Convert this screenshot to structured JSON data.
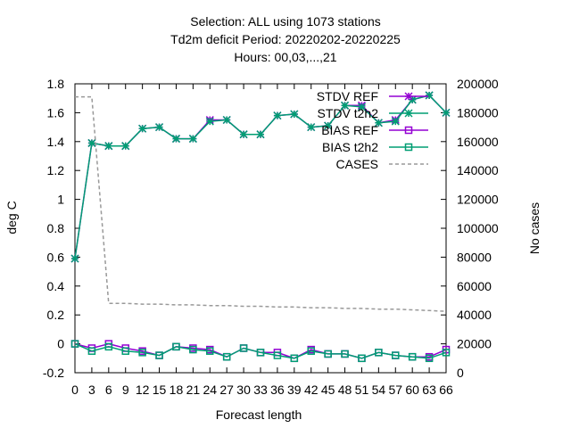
{
  "chart_data": {
    "type": "line",
    "title": [
      "Selection: ALL using  1073 stations",
      "Td2m deficit   Period: 20220202-20220225",
      "Hours:  00,03,...,21"
    ],
    "xlabel": "Forecast length",
    "ylabel": "deg C",
    "y2label": "No cases",
    "xlim": [
      0,
      66
    ],
    "ylim": [
      -0.2,
      1.8
    ],
    "y2lim": [
      0,
      200000
    ],
    "x_tick_labels": [
      "0",
      "3",
      "6",
      "9",
      "12",
      "15",
      "18",
      "21",
      "24",
      "27",
      "30",
      "33",
      "36",
      "39",
      "42",
      "45",
      "48",
      "51",
      "54",
      "57",
      "60",
      "63",
      "66"
    ],
    "y_tick_labels": [
      "-0.2",
      "0",
      "0.2",
      "0.4",
      "0.6",
      "0.8",
      "1",
      "1.2",
      "1.4",
      "1.6",
      "1.8"
    ],
    "y2_tick_labels": [
      "0",
      "20000",
      "40000",
      "60000",
      "80000",
      "100000",
      "120000",
      "140000",
      "160000",
      "180000",
      "200000"
    ],
    "legend_position": "top-right",
    "x": [
      0,
      3,
      6,
      9,
      12,
      15,
      18,
      21,
      24,
      27,
      30,
      33,
      36,
      39,
      42,
      45,
      48,
      51,
      54,
      57,
      60,
      63,
      66
    ],
    "series": [
      {
        "name": "STDV REF",
        "axis": "y1",
        "color": "#9400d3",
        "marker": "x",
        "values": [
          0.59,
          1.39,
          1.37,
          1.37,
          1.49,
          1.5,
          1.42,
          1.42,
          1.55,
          1.55,
          1.45,
          1.45,
          1.58,
          1.59,
          1.5,
          1.51,
          1.65,
          1.65,
          1.53,
          1.55,
          1.69,
          1.72,
          1.6
        ]
      },
      {
        "name": "STDV t2h2",
        "axis": "y1",
        "color": "#009e73",
        "marker": "x",
        "values": [
          0.59,
          1.39,
          1.37,
          1.37,
          1.49,
          1.5,
          1.42,
          1.42,
          1.54,
          1.55,
          1.45,
          1.45,
          1.58,
          1.59,
          1.5,
          1.51,
          1.65,
          1.64,
          1.53,
          1.54,
          1.69,
          1.72,
          1.6
        ]
      },
      {
        "name": "BIAS REF",
        "axis": "y1",
        "color": "#9400d3",
        "marker": "square",
        "values": [
          0.0,
          -0.03,
          0.0,
          -0.03,
          -0.05,
          -0.08,
          -0.02,
          -0.03,
          -0.04,
          -0.09,
          -0.03,
          -0.06,
          -0.06,
          -0.1,
          -0.04,
          -0.07,
          -0.07,
          -0.1,
          -0.06,
          -0.08,
          -0.09,
          -0.09,
          -0.04
        ]
      },
      {
        "name": "BIAS t2h2",
        "axis": "y1",
        "color": "#009e73",
        "marker": "square",
        "values": [
          0.0,
          -0.05,
          -0.02,
          -0.05,
          -0.06,
          -0.08,
          -0.02,
          -0.04,
          -0.05,
          -0.09,
          -0.03,
          -0.06,
          -0.08,
          -0.1,
          -0.05,
          -0.07,
          -0.07,
          -0.1,
          -0.06,
          -0.08,
          -0.09,
          -0.1,
          -0.06
        ]
      },
      {
        "name": "CASES",
        "axis": "y2",
        "color": "#999999",
        "marker": "none",
        "dashed": true,
        "values": [
          191000,
          191000,
          48000,
          48000,
          47500,
          47500,
          47000,
          47000,
          46500,
          46500,
          46000,
          46000,
          45500,
          45500,
          45000,
          45000,
          44500,
          44500,
          44000,
          44000,
          43500,
          43000,
          42500
        ]
      }
    ]
  }
}
